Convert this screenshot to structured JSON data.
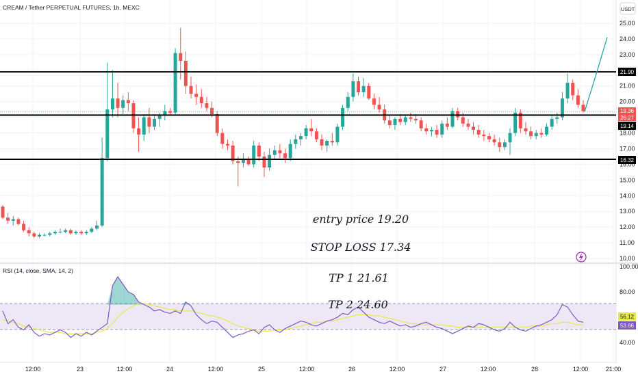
{
  "header": {
    "title": "CREAM / Tether PERPETUAL FUTURES, 1h, MEXC",
    "currency_button": "USDT"
  },
  "annotations": {
    "entry": "entry price  19.20",
    "stop_loss": "STOP LOSS 17.34",
    "tp1": "TP 1   21.61",
    "tp2": "TP 2 24.60"
  },
  "price_labels": {
    "resistance": "21.90",
    "last_price": "19.36",
    "countdown": "26:27",
    "entry_line": "19.14",
    "support": "16.32"
  },
  "rsi_labels": {
    "title": "RSI (14, close, SMA, 14, 2)",
    "rsi_value": "56.12",
    "sma_value": "53.66"
  },
  "colors": {
    "up": "#26a69a",
    "down": "#ef5350",
    "rsi_line": "#7e57c2",
    "rsi_sma": "#e6e84a",
    "rsi_band": "#ede7f6",
    "projection": "#26a69a",
    "level_line": "#000000"
  },
  "icons": {
    "lightning": "lightning-icon"
  },
  "chart_data": [
    {
      "type": "candlestick",
      "title": "CREAM / Tether PERPETUAL FUTURES, 1h, MEXC",
      "y_ticks": [
        "25.00",
        "24.00",
        "23.00",
        "22.00",
        "21.00",
        "20.00",
        "19.00",
        "18.00",
        "17.00",
        "16.00",
        "15.00",
        "14.00",
        "13.00",
        "12.00",
        "11.00",
        "10.00"
      ],
      "ylim": [
        10.0,
        25.0
      ],
      "x_ticks": [
        "12:00",
        "23",
        "12:00",
        "24",
        "12:00",
        "25",
        "12:00",
        "26",
        "12:00",
        "27",
        "12:00",
        "28",
        "12:00",
        "21:00"
      ],
      "levels": [
        21.9,
        19.14,
        16.32
      ],
      "projection": [
        [
          19.2,
          19.36
        ],
        [
          24.1,
          21.9
        ],
        [
          24.2,
          24.1
        ]
      ],
      "grid": true,
      "candles": [
        [
          13.3,
          13.4,
          12.5,
          12.6
        ],
        [
          12.6,
          12.9,
          12.2,
          12.4
        ],
        [
          12.4,
          12.7,
          12.1,
          12.5
        ],
        [
          12.5,
          12.6,
          12.1,
          12.2
        ],
        [
          12.2,
          12.4,
          11.7,
          11.8
        ],
        [
          11.8,
          12.0,
          11.4,
          11.6
        ],
        [
          11.6,
          11.7,
          11.3,
          11.4
        ],
        [
          11.4,
          11.6,
          11.3,
          11.5
        ],
        [
          11.5,
          11.6,
          11.4,
          11.5
        ],
        [
          11.5,
          11.7,
          11.4,
          11.6
        ],
        [
          11.6,
          11.8,
          11.5,
          11.7
        ],
        [
          11.7,
          11.9,
          11.6,
          11.7
        ],
        [
          11.7,
          11.9,
          11.6,
          11.8
        ],
        [
          11.8,
          11.9,
          11.5,
          11.6
        ],
        [
          11.6,
          11.8,
          11.5,
          11.7
        ],
        [
          11.7,
          11.8,
          11.5,
          11.6
        ],
        [
          11.6,
          11.8,
          11.5,
          11.7
        ],
        [
          11.7,
          12.0,
          11.6,
          11.9
        ],
        [
          11.9,
          12.4,
          11.8,
          12.1
        ],
        [
          12.1,
          17.7,
          12.0,
          16.4
        ],
        [
          16.4,
          22.5,
          16.2,
          19.5
        ],
        [
          19.5,
          22.0,
          19.0,
          20.2
        ],
        [
          20.2,
          21.2,
          19.0,
          19.6
        ],
        [
          19.6,
          20.4,
          19.2,
          20.1
        ],
        [
          20.1,
          20.6,
          19.4,
          19.9
        ],
        [
          19.9,
          20.1,
          18.0,
          18.3
        ],
        [
          18.3,
          19.0,
          16.8,
          17.9
        ],
        [
          17.9,
          19.2,
          17.5,
          19.0
        ],
        [
          19.0,
          19.6,
          18.0,
          18.4
        ],
        [
          18.4,
          19.2,
          18.2,
          18.9
        ],
        [
          18.9,
          19.3,
          18.4,
          19.1
        ],
        [
          19.1,
          19.8,
          18.8,
          19.4
        ],
        [
          19.4,
          19.6,
          19.1,
          19.3
        ],
        [
          19.3,
          23.4,
          19.2,
          23.1
        ],
        [
          23.1,
          24.7,
          21.4,
          22.6
        ],
        [
          22.6,
          23.2,
          20.5,
          21.0
        ],
        [
          21.0,
          21.6,
          20.2,
          20.5
        ],
        [
          20.5,
          21.1,
          19.8,
          20.3
        ],
        [
          20.3,
          20.8,
          19.6,
          19.9
        ],
        [
          19.9,
          20.3,
          19.4,
          19.6
        ],
        [
          19.6,
          20.0,
          19.0,
          19.2
        ],
        [
          19.2,
          19.4,
          17.8,
          18.0
        ],
        [
          18.0,
          18.3,
          17.0,
          17.3
        ],
        [
          17.3,
          17.6,
          16.9,
          17.2
        ],
        [
          17.2,
          17.5,
          16.0,
          16.2
        ],
        [
          16.2,
          16.5,
          14.6,
          16.1
        ],
        [
          16.1,
          16.7,
          15.8,
          16.3
        ],
        [
          16.3,
          16.5,
          15.9,
          16.0
        ],
        [
          16.0,
          17.5,
          15.8,
          17.2
        ],
        [
          17.2,
          17.4,
          16.2,
          16.5
        ],
        [
          16.5,
          16.8,
          15.2,
          15.8
        ],
        [
          15.8,
          17.0,
          15.6,
          16.6
        ],
        [
          16.6,
          17.2,
          16.3,
          16.9
        ],
        [
          16.9,
          17.3,
          16.4,
          16.7
        ],
        [
          16.7,
          17.0,
          16.1,
          16.4
        ],
        [
          16.4,
          17.6,
          16.2,
          17.3
        ],
        [
          17.3,
          17.9,
          17.0,
          17.6
        ],
        [
          17.6,
          18.0,
          17.2,
          17.8
        ],
        [
          17.8,
          18.5,
          17.6,
          18.3
        ],
        [
          18.3,
          18.9,
          17.8,
          18.1
        ],
        [
          18.1,
          18.3,
          17.4,
          17.6
        ],
        [
          17.6,
          17.9,
          16.9,
          17.2
        ],
        [
          17.2,
          17.6,
          16.8,
          17.5
        ],
        [
          17.5,
          18.0,
          17.2,
          17.4
        ],
        [
          17.4,
          18.6,
          17.2,
          18.4
        ],
        [
          18.4,
          19.8,
          18.2,
          19.6
        ],
        [
          19.6,
          20.6,
          19.4,
          20.3
        ],
        [
          20.3,
          21.8,
          20.0,
          21.3
        ],
        [
          21.3,
          21.6,
          20.4,
          20.6
        ],
        [
          20.6,
          21.5,
          20.3,
          21.0
        ],
        [
          21.0,
          21.2,
          20.1,
          20.2
        ],
        [
          20.2,
          20.5,
          19.5,
          19.8
        ],
        [
          19.8,
          20.3,
          19.3,
          19.5
        ],
        [
          19.5,
          19.8,
          18.6,
          18.8
        ],
        [
          18.8,
          19.1,
          18.3,
          18.5
        ],
        [
          18.5,
          19.0,
          18.2,
          18.9
        ],
        [
          18.9,
          19.2,
          18.5,
          18.7
        ],
        [
          18.7,
          19.1,
          18.5,
          19.0
        ],
        [
          19.0,
          19.3,
          18.7,
          18.9
        ],
        [
          18.9,
          19.2,
          18.6,
          18.8
        ],
        [
          18.8,
          19.0,
          18.1,
          18.3
        ],
        [
          18.3,
          18.6,
          17.9,
          18.1
        ],
        [
          18.1,
          18.4,
          17.8,
          18.2
        ],
        [
          18.2,
          18.5,
          17.7,
          17.9
        ],
        [
          17.9,
          18.8,
          17.7,
          18.6
        ],
        [
          18.6,
          19.0,
          18.2,
          18.4
        ],
        [
          18.4,
          19.6,
          18.3,
          19.4
        ],
        [
          19.4,
          19.6,
          18.8,
          19.0
        ],
        [
          19.0,
          19.3,
          18.4,
          18.6
        ],
        [
          18.6,
          18.9,
          18.2,
          18.4
        ],
        [
          18.4,
          18.7,
          17.9,
          18.2
        ],
        [
          18.2,
          18.5,
          17.7,
          17.9
        ],
        [
          17.9,
          18.2,
          17.5,
          17.8
        ],
        [
          17.8,
          18.0,
          17.4,
          17.6
        ],
        [
          17.6,
          17.9,
          17.2,
          17.4
        ],
        [
          17.4,
          17.7,
          16.8,
          17.1
        ],
        [
          17.1,
          17.6,
          16.9,
          17.4
        ],
        [
          17.4,
          18.3,
          16.6,
          18.0
        ],
        [
          18.0,
          19.6,
          17.8,
          19.3
        ],
        [
          19.3,
          19.5,
          18.0,
          18.3
        ],
        [
          18.3,
          18.7,
          17.9,
          18.1
        ],
        [
          18.1,
          18.4,
          17.6,
          17.8
        ],
        [
          17.8,
          18.2,
          17.6,
          18.0
        ],
        [
          18.0,
          18.3,
          17.7,
          17.9
        ],
        [
          17.9,
          18.6,
          17.8,
          18.4
        ],
        [
          18.4,
          19.1,
          18.2,
          18.9
        ],
        [
          18.9,
          19.3,
          18.6,
          19.0
        ],
        [
          19.0,
          20.6,
          18.8,
          20.2
        ],
        [
          20.2,
          21.8,
          19.9,
          21.2
        ],
        [
          21.2,
          21.4,
          20.1,
          20.4
        ],
        [
          20.4,
          20.8,
          19.6,
          19.8
        ],
        [
          19.8,
          20.1,
          19.3,
          19.4
        ]
      ]
    },
    {
      "type": "line",
      "title": "RSI (14, close, SMA, 14, 2)",
      "y_ticks": [
        "100.00",
        "80.00",
        "40.00"
      ],
      "ylim": [
        30,
        100
      ],
      "bands": [
        70,
        50
      ],
      "series": [
        {
          "name": "RSI",
          "values": [
            65,
            55,
            58,
            52,
            50,
            54,
            48,
            45,
            47,
            46,
            48,
            50,
            48,
            44,
            47,
            45,
            48,
            46,
            49,
            52,
            55,
            85,
            92,
            86,
            80,
            78,
            72,
            70,
            68,
            65,
            66,
            64,
            63,
            65,
            63,
            72,
            69,
            62,
            58,
            55,
            57,
            56,
            52,
            48,
            44,
            46,
            47,
            49,
            50,
            47,
            52,
            54,
            50,
            48,
            51,
            53,
            55,
            57,
            56,
            54,
            53,
            55,
            57,
            58,
            60,
            63,
            62,
            66,
            68,
            64,
            60,
            58,
            56,
            55,
            57,
            55,
            53,
            54,
            52,
            53,
            55,
            56,
            54,
            52,
            51,
            49,
            47,
            49,
            51,
            53,
            52,
            55,
            54,
            52,
            50,
            49,
            51,
            56,
            52,
            50,
            49,
            51,
            53,
            54,
            56,
            58,
            62,
            70,
            68,
            62,
            57,
            56
          ]
        },
        {
          "name": "SMA",
          "values": [
            58,
            57,
            56,
            55,
            53,
            52,
            51,
            50,
            49,
            48,
            48,
            48,
            47,
            47,
            47,
            47,
            47,
            47,
            48,
            49,
            51,
            55,
            60,
            64,
            67,
            69,
            71,
            71,
            70,
            69,
            68,
            67,
            66,
            66,
            65,
            65,
            65,
            64,
            63,
            62,
            61,
            60,
            59,
            57,
            55,
            53,
            52,
            51,
            50,
            49,
            49,
            49,
            50,
            50,
            50,
            51,
            52,
            53,
            54,
            55,
            56,
            56,
            57,
            57,
            58,
            59,
            60,
            61,
            62,
            62,
            62,
            61,
            61,
            60,
            59,
            58,
            57,
            56,
            55,
            55,
            54,
            54,
            54,
            54,
            54,
            53,
            53,
            52,
            52,
            52,
            52,
            52,
            52,
            52,
            52,
            52,
            52,
            52,
            52,
            52,
            52,
            53,
            53,
            53,
            54,
            55,
            55,
            56,
            56,
            55,
            54,
            54
          ]
        }
      ]
    }
  ]
}
